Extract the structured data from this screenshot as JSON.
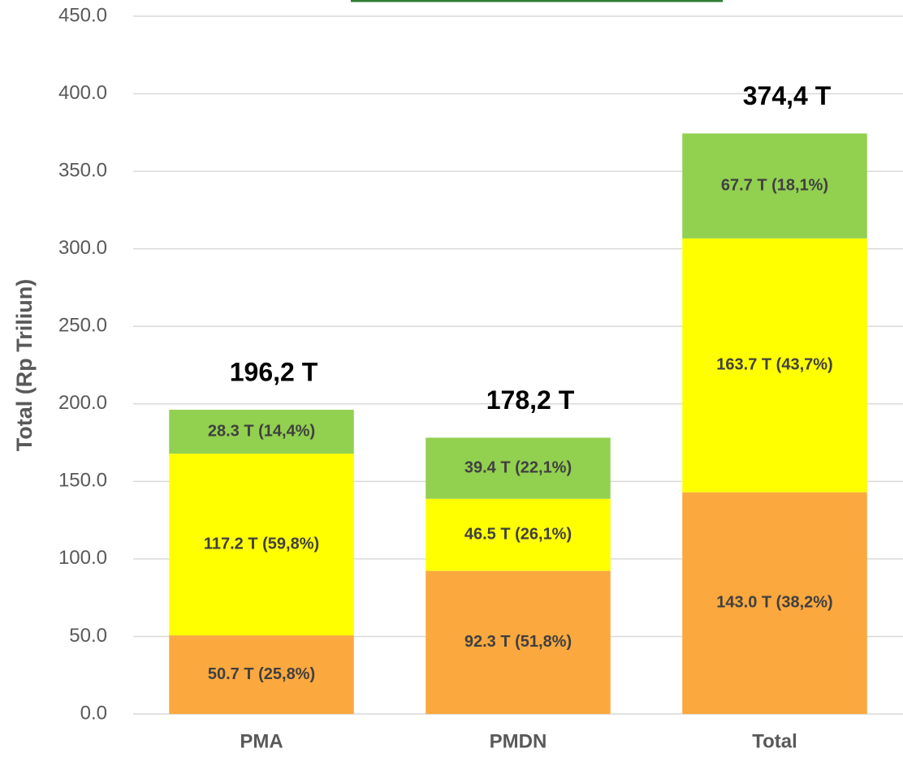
{
  "chart_data": {
    "type": "stacked_bar",
    "y_label": "Total (Rp Triliun)",
    "categories": [
      "PMA",
      "PMDN",
      "Total"
    ],
    "series": [
      {
        "color": "#fba83f",
        "values": [
          50.7,
          92.3,
          143.0
        ],
        "value_labels": [
          "50.7 T (25,8%)",
          "92.3 T (51,8%)",
          "143.0 T (38,2%)"
        ]
      },
      {
        "color": "#ffff00",
        "values": [
          117.2,
          46.5,
          163.7
        ],
        "value_labels": [
          "117.2 T (59,8%)",
          "46.5 T (26,1%)",
          "163.7 T (43,7%)"
        ]
      },
      {
        "color": "#92d050",
        "values": [
          28.3,
          39.4,
          67.7
        ],
        "value_labels": [
          "28.3 T (14,4%)",
          "39.4 T (22,1%)",
          "67.7 T (18,1%)"
        ]
      }
    ],
    "annotations": [
      "196,2 T",
      "178,2 T",
      "374,4 T"
    ],
    "ylim": [
      0,
      450
    ],
    "yticks": [
      {
        "value": 0,
        "label": "0.0"
      },
      {
        "value": 50,
        "label": "50.0"
      },
      {
        "value": 100,
        "label": "100.0"
      },
      {
        "value": 150,
        "label": "150.0"
      },
      {
        "value": 200,
        "label": "200.0"
      },
      {
        "value": 250,
        "label": "250.0"
      },
      {
        "value": 300,
        "label": "300.0"
      },
      {
        "value": 350,
        "label": "350.0"
      },
      {
        "value": 400,
        "label": "400.0"
      },
      {
        "value": 450,
        "label": "450.0"
      }
    ],
    "grid": true
  }
}
